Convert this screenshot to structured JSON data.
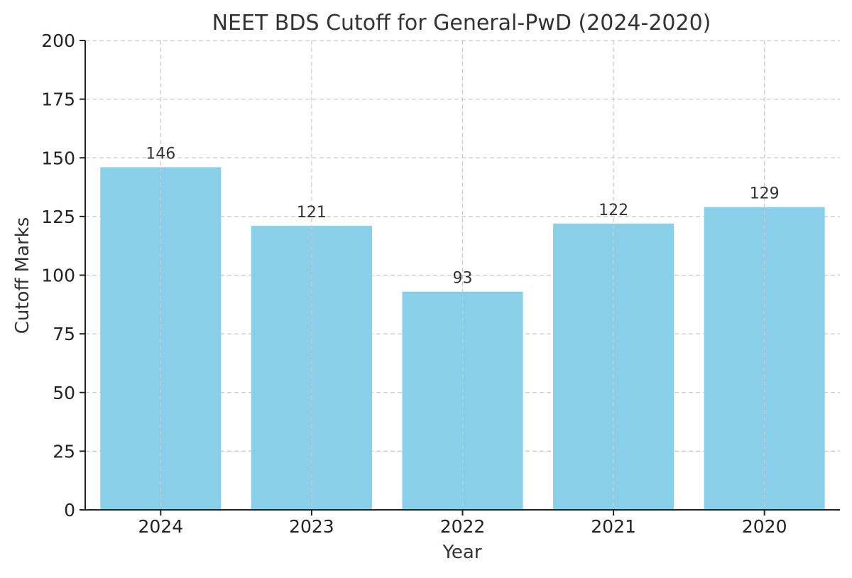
{
  "chart_data": {
    "type": "bar",
    "title": "NEET BDS Cutoff for General-PwD (2024-2020)",
    "xlabel": "Year",
    "ylabel": "Cutoff Marks",
    "categories": [
      "2024",
      "2023",
      "2022",
      "2021",
      "2020"
    ],
    "values": [
      146,
      121,
      93,
      122,
      129
    ],
    "data_labels": [
      "146",
      "121",
      "93",
      "122",
      "129"
    ],
    "ylim": [
      0,
      200
    ],
    "yticks": [
      0,
      25,
      50,
      75,
      100,
      125,
      150,
      175,
      200
    ],
    "grid": true,
    "bar_color": "#89CFEA",
    "legend": "none"
  }
}
